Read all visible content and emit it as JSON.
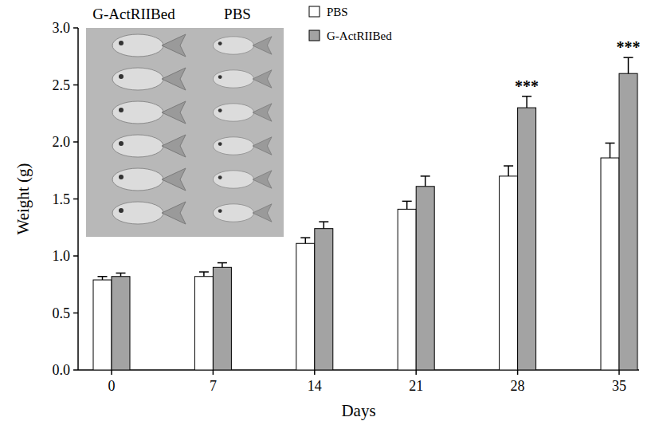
{
  "chart_data": {
    "type": "bar",
    "x_label": "Days",
    "y_label": "Weight (g)",
    "categories": [
      "0",
      "7",
      "14",
      "21",
      "28",
      "35"
    ],
    "series": [
      {
        "name": "PBS",
        "color": "#ffffff",
        "values": [
          0.79,
          0.82,
          1.11,
          1.41,
          1.7,
          1.86
        ],
        "errors": [
          0.03,
          0.04,
          0.05,
          0.07,
          0.09,
          0.13
        ]
      },
      {
        "name": "G-ActRIIBed",
        "color": "#a3a3a3",
        "values": [
          0.82,
          0.9,
          1.24,
          1.61,
          2.3,
          2.6
        ],
        "errors": [
          0.03,
          0.04,
          0.06,
          0.09,
          0.1,
          0.14
        ]
      }
    ],
    "ylim": [
      0,
      3
    ],
    "yticks": [
      {
        "value": 0,
        "label": "0.0"
      },
      {
        "value": 0.5,
        "label": "0.5"
      },
      {
        "value": 1,
        "label": "1.0"
      },
      {
        "value": 1.5,
        "label": "1.5"
      },
      {
        "value": 2,
        "label": "2.0"
      },
      {
        "value": 2.5,
        "label": "2.5"
      },
      {
        "value": 3,
        "label": "3.0"
      }
    ],
    "grid": false,
    "legend": "top",
    "annotations": [
      {
        "text": "***",
        "x": "28",
        "series": "G-ActRIIBed"
      },
      {
        "text": "***",
        "x": "35",
        "series": "G-ActRIIBed"
      }
    ],
    "inset": {
      "labels": [
        "G-ActRIIBed",
        "PBS"
      ]
    }
  }
}
